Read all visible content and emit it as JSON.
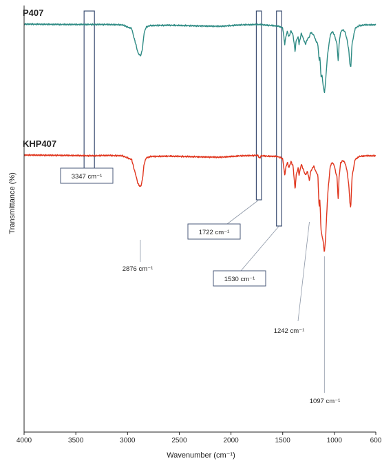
{
  "chart_data": {
    "type": "line",
    "xlabel": "Wavenumber (cm⁻¹)",
    "ylabel": "Transmittance (%)",
    "xlim": [
      4000,
      600
    ],
    "x_ticks": [
      "4000",
      "3500",
      "3000",
      "2500",
      "2000",
      "1500",
      "1000",
      "600"
    ],
    "grid": false,
    "series": [
      {
        "name": "P407",
        "color": "#2e8b84",
        "baseline": 0.0,
        "points": [
          [
            4000,
            0.0
          ],
          [
            3600,
            0.01
          ],
          [
            3200,
            0.01
          ],
          [
            3050,
            0.02
          ],
          [
            2990,
            0.09
          ],
          [
            2960,
            0.12
          ],
          [
            2940,
            0.35
          ],
          [
            2920,
            0.55
          ],
          [
            2900,
            0.78
          ],
          [
            2885,
            0.84
          ],
          [
            2876,
            0.86
          ],
          [
            2868,
            0.83
          ],
          [
            2855,
            0.65
          ],
          [
            2840,
            0.25
          ],
          [
            2820,
            0.08
          ],
          [
            2780,
            0.04
          ],
          [
            2600,
            0.03
          ],
          [
            2300,
            0.05
          ],
          [
            2100,
            0.06
          ],
          [
            1900,
            0.02
          ],
          [
            1722,
            0.01
          ],
          [
            1650,
            0.03
          ],
          [
            1550,
            0.05
          ],
          [
            1500,
            0.1
          ],
          [
            1480,
            0.55
          ],
          [
            1470,
            0.35
          ],
          [
            1455,
            0.2
          ],
          [
            1440,
            0.35
          ],
          [
            1420,
            0.18
          ],
          [
            1400,
            0.3
          ],
          [
            1380,
            0.75
          ],
          [
            1370,
            0.45
          ],
          [
            1350,
            0.35
          ],
          [
            1342,
            0.55
          ],
          [
            1320,
            0.25
          ],
          [
            1300,
            0.4
          ],
          [
            1280,
            0.55
          ],
          [
            1260,
            0.4
          ],
          [
            1242,
            0.35
          ],
          [
            1230,
            0.22
          ],
          [
            1200,
            0.3
          ],
          [
            1180,
            0.45
          ],
          [
            1160,
            0.55
          ],
          [
            1148,
            1.0
          ],
          [
            1140,
            0.88
          ],
          [
            1130,
            1.45
          ],
          [
            1120,
            1.4
          ],
          [
            1110,
            1.65
          ],
          [
            1097,
            1.9
          ],
          [
            1085,
            1.55
          ],
          [
            1070,
            0.95
          ],
          [
            1060,
            0.7
          ],
          [
            1040,
            0.3
          ],
          [
            1020,
            0.2
          ],
          [
            1000,
            0.3
          ],
          [
            990,
            0.4
          ],
          [
            975,
            0.55
          ],
          [
            963,
            1.05
          ],
          [
            955,
            0.55
          ],
          [
            940,
            0.22
          ],
          [
            920,
            0.15
          ],
          [
            900,
            0.2
          ],
          [
            880,
            0.4
          ],
          [
            862,
            0.7
          ],
          [
            850,
            1.1
          ],
          [
            842,
            1.2
          ],
          [
            830,
            0.55
          ],
          [
            800,
            0.12
          ],
          [
            760,
            0.04
          ],
          [
            700,
            0.02
          ],
          [
            600,
            0.02
          ]
        ]
      },
      {
        "name": "KHP407",
        "color": "#e0351d",
        "baseline": 0.0,
        "points": [
          [
            4000,
            0.0
          ],
          [
            3600,
            0.01
          ],
          [
            3347,
            0.02
          ],
          [
            3200,
            0.01
          ],
          [
            3050,
            0.02
          ],
          [
            2990,
            0.09
          ],
          [
            2960,
            0.12
          ],
          [
            2940,
            0.35
          ],
          [
            2920,
            0.55
          ],
          [
            2900,
            0.78
          ],
          [
            2885,
            0.84
          ],
          [
            2876,
            0.86
          ],
          [
            2868,
            0.83
          ],
          [
            2855,
            0.65
          ],
          [
            2840,
            0.25
          ],
          [
            2820,
            0.08
          ],
          [
            2780,
            0.04
          ],
          [
            2600,
            0.03
          ],
          [
            2300,
            0.05
          ],
          [
            2100,
            0.06
          ],
          [
            1900,
            0.02
          ],
          [
            1740,
            0.01
          ],
          [
            1722,
            0.09
          ],
          [
            1710,
            0.02
          ],
          [
            1650,
            0.03
          ],
          [
            1550,
            0.04
          ],
          [
            1530,
            0.06
          ],
          [
            1500,
            0.1
          ],
          [
            1480,
            0.55
          ],
          [
            1470,
            0.35
          ],
          [
            1455,
            0.2
          ],
          [
            1440,
            0.35
          ],
          [
            1420,
            0.18
          ],
          [
            1400,
            0.3
          ],
          [
            1380,
            0.95
          ],
          [
            1370,
            0.55
          ],
          [
            1350,
            0.35
          ],
          [
            1342,
            0.55
          ],
          [
            1320,
            0.25
          ],
          [
            1300,
            0.4
          ],
          [
            1280,
            0.55
          ],
          [
            1260,
            0.45
          ],
          [
            1242,
            0.7
          ],
          [
            1230,
            0.45
          ],
          [
            1200,
            0.3
          ],
          [
            1180,
            0.45
          ],
          [
            1160,
            0.55
          ],
          [
            1148,
            1.45
          ],
          [
            1140,
            1.2
          ],
          [
            1130,
            2.05
          ],
          [
            1120,
            2.2
          ],
          [
            1110,
            2.35
          ],
          [
            1097,
            2.68
          ],
          [
            1085,
            2.25
          ],
          [
            1070,
            1.35
          ],
          [
            1060,
            0.9
          ],
          [
            1040,
            0.3
          ],
          [
            1020,
            0.2
          ],
          [
            1000,
            0.3
          ],
          [
            990,
            0.45
          ],
          [
            975,
            0.6
          ],
          [
            963,
            1.25
          ],
          [
            955,
            0.6
          ],
          [
            940,
            0.22
          ],
          [
            920,
            0.15
          ],
          [
            900,
            0.2
          ],
          [
            880,
            0.4
          ],
          [
            862,
            0.8
          ],
          [
            850,
            1.3
          ],
          [
            842,
            1.45
          ],
          [
            830,
            0.6
          ],
          [
            800,
            0.12
          ],
          [
            760,
            0.04
          ],
          [
            700,
            0.02
          ],
          [
            600,
            0.02
          ]
        ]
      }
    ],
    "highlight_bands": [
      {
        "name": "band-3347",
        "from": 3420,
        "to": 3320
      },
      {
        "name": "band-1722",
        "from": 1755,
        "to": 1705
      },
      {
        "name": "band-1530",
        "from": 1560,
        "to": 1510
      }
    ],
    "annotations": [
      {
        "id": "ann-3347",
        "text": "3347 cm⁻¹",
        "boxed": true,
        "series": "KHP407",
        "x": 3347
      },
      {
        "id": "ann-1722",
        "text": "1722 cm⁻¹",
        "boxed": true,
        "series": "KHP407",
        "x": 1722
      },
      {
        "id": "ann-1530",
        "text": "1530 cm⁻¹",
        "boxed": true,
        "series": "KHP407",
        "x": 1530
      },
      {
        "id": "ann-2876",
        "text": "2876 cm⁻¹",
        "boxed": false,
        "series": "KHP407",
        "x": 2876
      },
      {
        "id": "ann-1242",
        "text": "1242 cm⁻¹",
        "boxed": false,
        "series": "KHP407",
        "x": 1242
      },
      {
        "id": "ann-1097",
        "text": "1097 cm⁻¹",
        "boxed": false,
        "series": "KHP407",
        "x": 1097
      }
    ]
  }
}
